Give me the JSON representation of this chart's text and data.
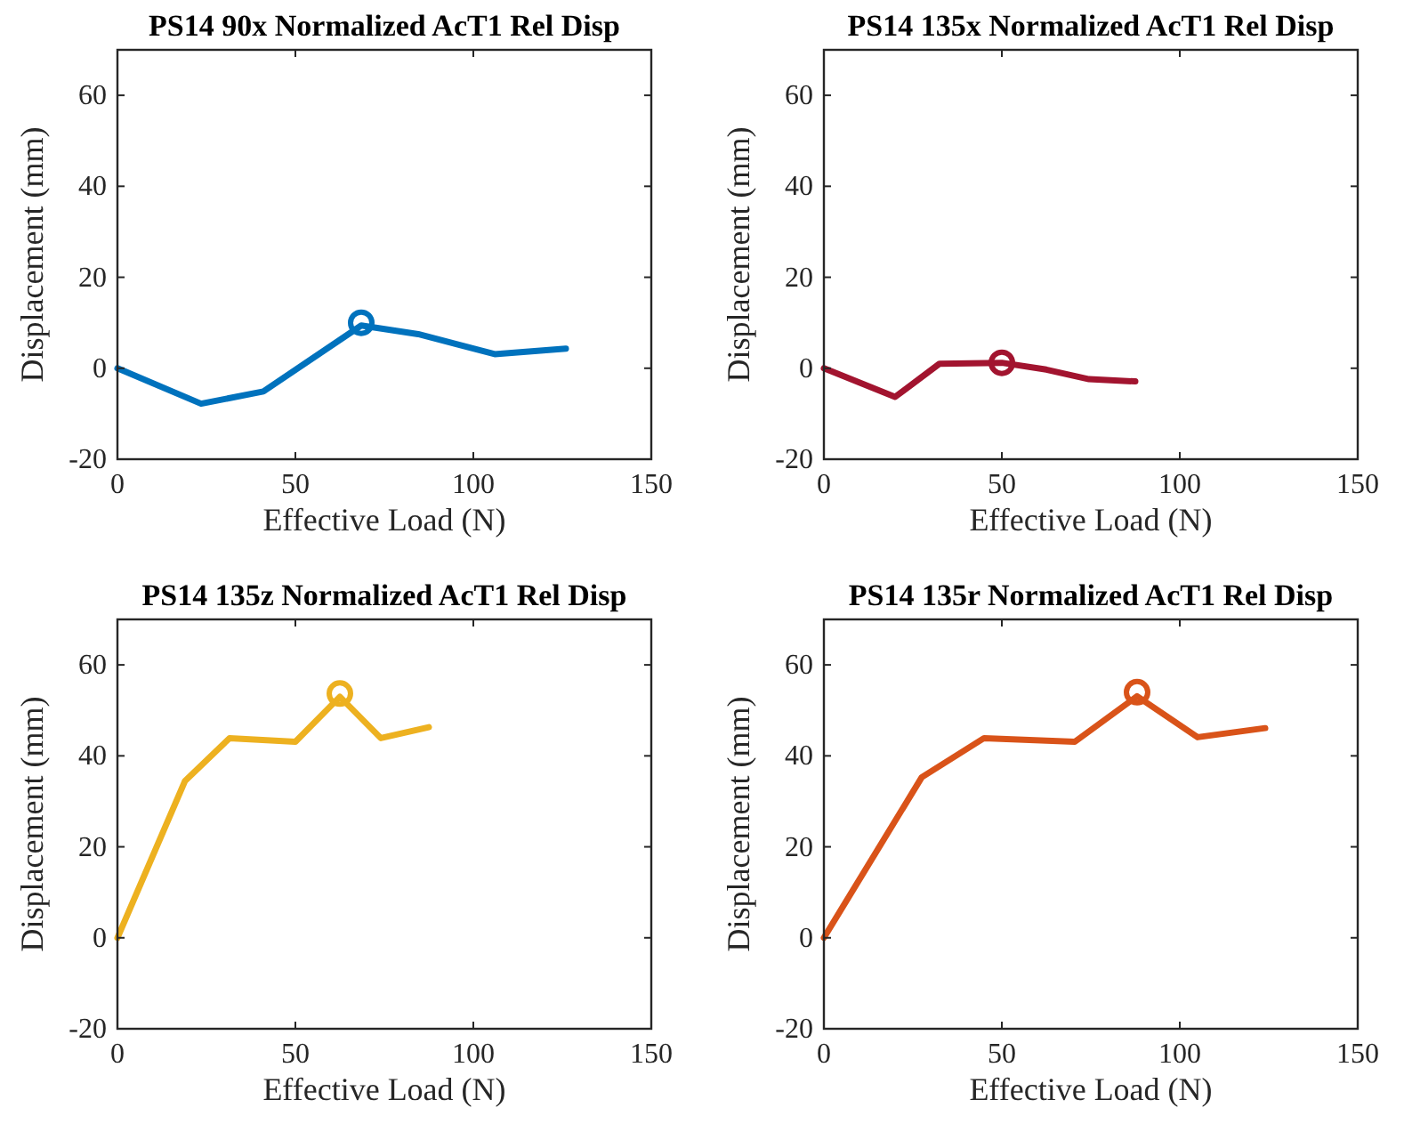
{
  "chart_data": [
    {
      "type": "line",
      "title": "PS14 90x Normalized AcT1 Rel Disp",
      "xlabel": "Effective Load (N)",
      "ylabel": "Displacement (mm)",
      "xlim": [
        0,
        150
      ],
      "xticks": [
        0,
        50,
        100,
        150
      ],
      "ylim": [
        -20,
        70
      ],
      "yticks": [
        -20,
        0,
        20,
        40,
        60
      ],
      "grid": false,
      "series": [
        {
          "color": "#0072bd",
          "x": [
            0,
            23.5,
            41,
            68.5,
            84.5,
            106,
            126
          ],
          "values": [
            0,
            -7.8,
            -5.1,
            9.4,
            7.5,
            3.1,
            4.3
          ]
        },
        {
          "type": "scatter",
          "marker": "circle",
          "color": "#0072bd",
          "x": [
            68.5
          ],
          "values": [
            10
          ]
        }
      ]
    },
    {
      "type": "line",
      "title": "PS14 135x Normalized AcT1 Rel Disp",
      "xlabel": "Effective Load (N)",
      "ylabel": "Displacement (mm)",
      "xlim": [
        0,
        150
      ],
      "xticks": [
        0,
        50,
        100,
        150
      ],
      "ylim": [
        -20,
        70
      ],
      "yticks": [
        -20,
        0,
        20,
        40,
        60
      ],
      "grid": false,
      "series": [
        {
          "color": "#a2142f",
          "x": [
            0,
            20,
            32.5,
            50,
            62.5,
            74.5,
            87.5
          ],
          "values": [
            0,
            -6.3,
            1,
            1.2,
            -0.3,
            -2.4,
            -2.9
          ]
        },
        {
          "type": "scatter",
          "marker": "circle",
          "color": "#a2142f",
          "x": [
            50
          ],
          "values": [
            1.2
          ]
        }
      ]
    },
    {
      "type": "line",
      "title": "PS14 135z Normalized AcT1 Rel Disp",
      "xlabel": "Effective Load (N)",
      "ylabel": "Displacement (mm)",
      "xlim": [
        0,
        150
      ],
      "xticks": [
        0,
        50,
        100,
        150
      ],
      "ylim": [
        -20,
        70
      ],
      "yticks": [
        -20,
        0,
        20,
        40,
        60
      ],
      "grid": false,
      "series": [
        {
          "color": "#edb120",
          "x": [
            0,
            19,
            31.5,
            50,
            62.5,
            74,
            87.5
          ],
          "values": [
            0,
            34.5,
            43.9,
            43.1,
            53,
            43.9,
            46.3
          ]
        },
        {
          "type": "scatter",
          "marker": "circle",
          "color": "#edb120",
          "x": [
            62.5
          ],
          "values": [
            53.7
          ]
        }
      ]
    },
    {
      "type": "line",
      "title": "PS14 135r Normalized AcT1 Rel Disp",
      "xlabel": "Effective Load (N)",
      "ylabel": "Displacement (mm)",
      "xlim": [
        0,
        150
      ],
      "xticks": [
        0,
        50,
        100,
        150
      ],
      "ylim": [
        -20,
        70
      ],
      "yticks": [
        -20,
        0,
        20,
        40,
        60
      ],
      "grid": false,
      "series": [
        {
          "color": "#d95319",
          "x": [
            0,
            27.5,
            45,
            70.5,
            88,
            105,
            124
          ],
          "values": [
            0,
            35.3,
            43.9,
            43.1,
            53.1,
            44.1,
            46.1
          ]
        },
        {
          "type": "scatter",
          "marker": "circle",
          "color": "#d95319",
          "x": [
            88
          ],
          "values": [
            54
          ]
        }
      ]
    }
  ]
}
